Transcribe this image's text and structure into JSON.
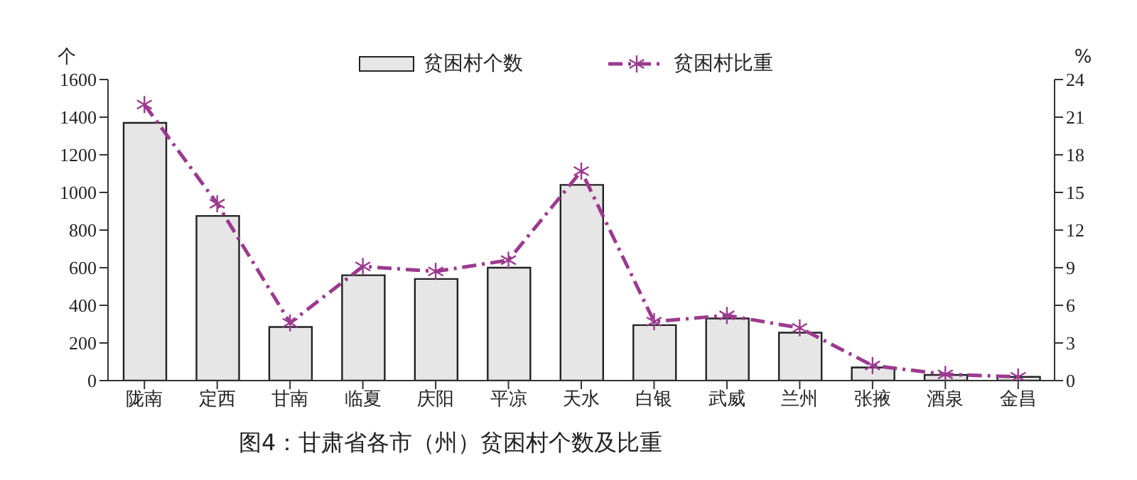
{
  "chart_data": {
    "type": "bar",
    "title": "图4：甘肃省各市（州）贫困村个数及比重",
    "ylabel": "个",
    "y2label": "%",
    "categories": [
      "陇南",
      "定西",
      "甘南",
      "临夏",
      "庆阳",
      "平凉",
      "天水",
      "白银",
      "武威",
      "兰州",
      "张掖",
      "酒泉",
      "金昌"
    ],
    "series": [
      {
        "name": "贫困村个数",
        "color": "#e6e6e6",
        "values": [
          1370,
          875,
          285,
          560,
          540,
          600,
          1040,
          295,
          330,
          255,
          70,
          30,
          20
        ]
      },
      {
        "name": "贫困村比重",
        "type": "line",
        "axis": "y2",
        "color": "#9b3a8f",
        "marker": "cross",
        "line_style": "dashed",
        "values": [
          22,
          14.1,
          4.6,
          9.1,
          8.7,
          9.6,
          16.7,
          4.7,
          5.2,
          4.2,
          1.2,
          0.5,
          0.3
        ]
      }
    ],
    "ylim": [
      0,
      1600
    ],
    "yticks": [
      0,
      200,
      400,
      600,
      800,
      1000,
      1200,
      1400,
      1600
    ],
    "y2lim": [
      0,
      24
    ],
    "y2ticks": [
      0,
      3,
      6,
      9,
      12,
      15,
      18,
      21,
      24
    ],
    "grid": false,
    "legend": "top"
  }
}
